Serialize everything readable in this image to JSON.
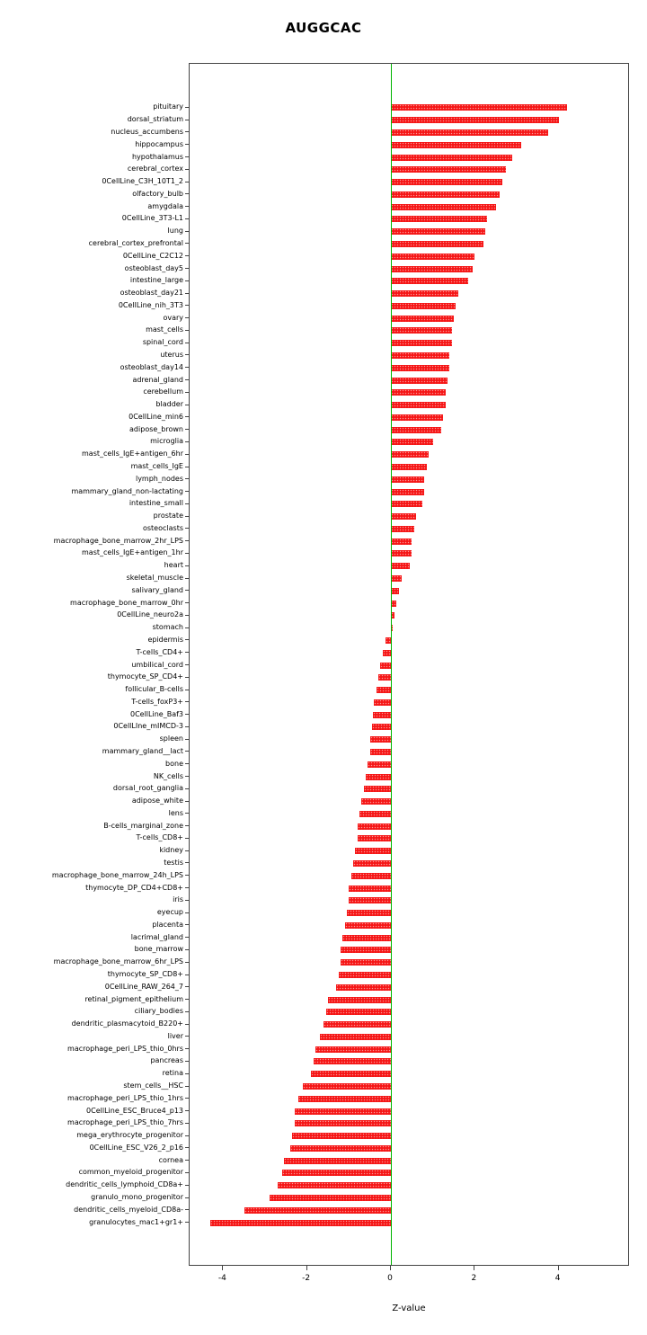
{
  "chart_data": {
    "type": "bar",
    "orientation": "horizontal",
    "title": "AUGGCAC",
    "xlabel": "Z-value",
    "ylabel": "",
    "xlim": [
      -4.8,
      5.7
    ],
    "xticks": [
      -4,
      -2,
      0,
      2,
      4
    ],
    "grid": false,
    "legend": false,
    "bar_color": "#f51515",
    "zero_line_color": "#00b400",
    "categories": [
      "pituitary",
      "dorsal_striatum",
      "nucleus_accumbens",
      "hippocampus",
      "hypothalamus",
      "cerebral_cortex",
      "0CellLine_C3H_10T1_2",
      "olfactory_bulb",
      "amygdala",
      "0CellLine_3T3-L1",
      "lung",
      "cerebral_cortex_prefrontal",
      "0CellLine_C2C12",
      "osteoblast_day5",
      "intestine_large",
      "osteoblast_day21",
      "0CellLine_nih_3T3",
      "ovary",
      "mast_cells",
      "spinal_cord",
      "uterus",
      "osteoblast_day14",
      "adrenal_gland",
      "cerebellum",
      "bladder",
      "0CellLine_min6",
      "adipose_brown",
      "microglia",
      "mast_cells_IgE+antigen_6hr",
      "mast_cells_IgE",
      "lymph_nodes",
      "mammary_gland_non-lactating",
      "intestine_small",
      "prostate",
      "osteoclasts",
      "macrophage_bone_marrow_2hr_LPS",
      "mast_cells_IgE+antigen_1hr",
      "heart",
      "skeletal_muscle",
      "salivary_gland",
      "macrophage_bone_marrow_0hr",
      "0CellLine_neuro2a",
      "stomach",
      "epidermis",
      "T-cells_CD4+",
      "umbilical_cord",
      "thymocyte_SP_CD4+",
      "follicular_B-cells",
      "T-cells_foxP3+",
      "0CellLine_Baf3",
      "0CellLIne_mIMCD-3",
      "spleen",
      "mammary_gland__lact",
      "bone",
      "NK_cells",
      "dorsal_root_ganglia",
      "adipose_white",
      "lens",
      "B-cells_marginal_zone",
      "T-cells_CD8+",
      "kidney",
      "testis",
      "macrophage_bone_marrow_24h_LPS",
      "thymocyte_DP_CD4+CD8+",
      "iris",
      "eyecup",
      "placenta",
      "lacrimal_gland",
      "bone_marrow",
      "macrophage_bone_marrow_6hr_LPS",
      "thymocyte_SP_CD8+",
      "0CellLine_RAW_264_7",
      "retinal_pigment_epithelium",
      "ciliary_bodies",
      "dendritic_plasmacytoid_B220+",
      "liver",
      "macrophage_peri_LPS_thio_0hrs",
      "pancreas",
      "retina",
      "stem_cells__HSC",
      "macrophage_peri_LPS_thio_1hrs",
      "0CellLine_ESC_Bruce4_p13",
      "macrophage_peri_LPS_thio_7hrs",
      "mega_erythrocyte_progenitor",
      "0CellLine_ESC_V26_2_p16",
      "cornea",
      "common_myeloid_progenitor",
      "dendritic_cells_lymphoid_CD8a+",
      "granulo_mono_progenitor",
      "dendritic_cells_myeloid_CD8a-",
      "granulocytes_mac1+gr1+"
    ],
    "values": [
      4.2,
      4.0,
      3.75,
      3.1,
      2.9,
      2.75,
      2.65,
      2.6,
      2.5,
      2.3,
      2.25,
      2.2,
      2.0,
      1.95,
      1.85,
      1.6,
      1.55,
      1.5,
      1.45,
      1.45,
      1.4,
      1.4,
      1.35,
      1.3,
      1.3,
      1.25,
      1.2,
      1.0,
      0.9,
      0.85,
      0.8,
      0.8,
      0.75,
      0.6,
      0.55,
      0.5,
      0.5,
      0.45,
      0.25,
      0.2,
      0.12,
      0.08,
      0.04,
      -0.12,
      -0.2,
      -0.25,
      -0.3,
      -0.35,
      -0.4,
      -0.42,
      -0.45,
      -0.5,
      -0.5,
      -0.55,
      -0.6,
      -0.65,
      -0.7,
      -0.75,
      -0.8,
      -0.8,
      -0.85,
      -0.9,
      -0.95,
      -1.0,
      -1.0,
      -1.05,
      -1.1,
      -1.15,
      -1.2,
      -1.2,
      -1.25,
      -1.3,
      -1.5,
      -1.55,
      -1.6,
      -1.7,
      -1.8,
      -1.85,
      -1.9,
      -2.1,
      -2.2,
      -2.3,
      -2.3,
      -2.35,
      -2.4,
      -2.55,
      -2.6,
      -2.7,
      -2.9,
      -3.5,
      -4.3
    ]
  }
}
